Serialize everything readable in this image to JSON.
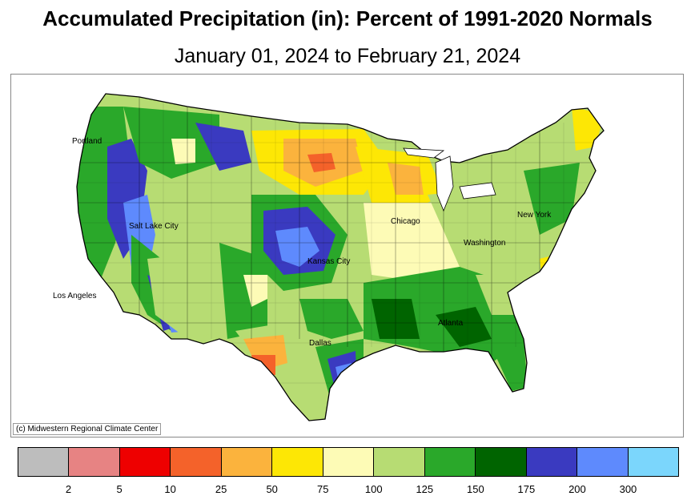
{
  "title": "Accumulated Precipitation (in): Percent of 1991-2020 Normals",
  "subtitle": "January 01, 2024 to February 21, 2024",
  "credit": "(c) Midwestern Regional Climate Center",
  "cities": {
    "portland": "Portland",
    "salt_lake_city": "Salt Lake City",
    "los_angeles": "Los Angeles",
    "kansas_city": "Kansas City",
    "chicago": "Chicago",
    "washington": "Washington",
    "new_york": "New York",
    "atlanta": "Atlanta",
    "dallas": "Dallas"
  },
  "legend": {
    "colors": [
      "#bdbdbd",
      "#e78383",
      "#ee0000",
      "#f4622a",
      "#fbb33d",
      "#fde705",
      "#fdfbb6",
      "#b7dc73",
      "#2aa82a",
      "#006400",
      "#3a3ac0",
      "#5e8afd",
      "#7bd6fc"
    ],
    "labels": [
      "2",
      "5",
      "10",
      "25",
      "50",
      "75",
      "100",
      "125",
      "150",
      "175",
      "200",
      "300"
    ]
  }
}
